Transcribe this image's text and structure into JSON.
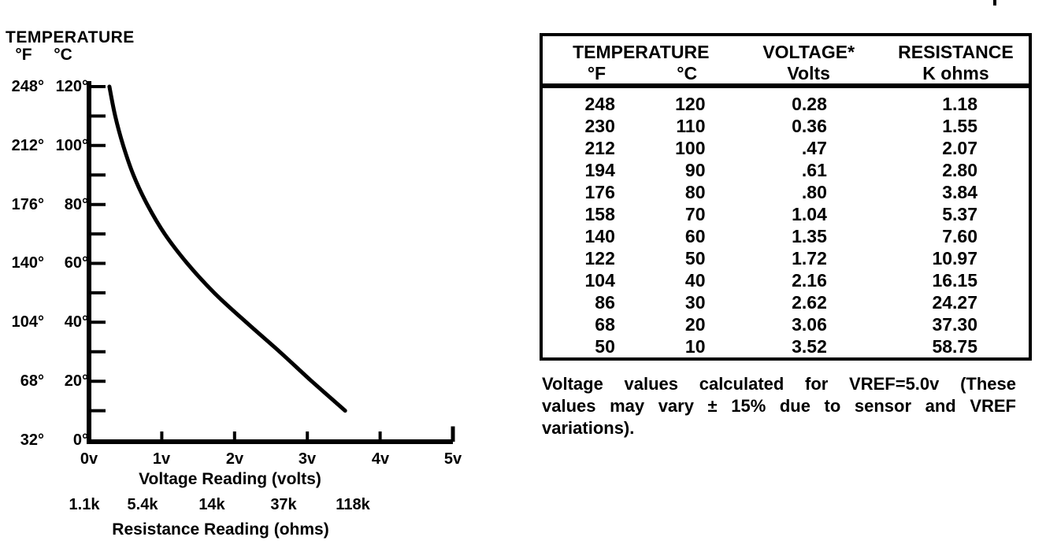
{
  "chart": {
    "title": "TEMPERATURE",
    "unit_f": "°F",
    "unit_c": "°C",
    "y_rows": [
      {
        "f": "248°",
        "c": "120°"
      },
      {
        "f": "212°",
        "c": "100°"
      },
      {
        "f": "176°",
        "c": "80°"
      },
      {
        "f": "140°",
        "c": "60°"
      },
      {
        "f": "104°",
        "c": "40°"
      },
      {
        "f": "68°",
        "c": "20°"
      },
      {
        "f": "32°",
        "c": "0°"
      }
    ],
    "x_ticks": [
      "0v",
      "1v",
      "2v",
      "3v",
      "4v",
      "5v"
    ],
    "x_axis_label": "Voltage Reading (volts)",
    "r_ticks": [
      "1.1k",
      "5.4k",
      "14k",
      "37k",
      "118k"
    ],
    "r_axis_label": "Resistance Reading (ohms)"
  },
  "chart_data": {
    "type": "line",
    "title": "TEMPERATURE",
    "x": [
      0.28,
      0.36,
      0.47,
      0.61,
      0.8,
      1.04,
      1.35,
      1.72,
      2.16,
      2.62,
      3.06,
      3.52
    ],
    "y": [
      120,
      110,
      100,
      90,
      80,
      70,
      60,
      50,
      40,
      30,
      20,
      10
    ],
    "xlabel": "Voltage Reading (volts)",
    "ylabel": "TEMPERATURE °F / °C",
    "xlim": [
      0,
      5
    ],
    "ylim_celsius": [
      0,
      120
    ],
    "y_tick_labels_f": [
      248,
      212,
      176,
      140,
      104,
      68,
      32
    ],
    "y_tick_labels_c": [
      120,
      100,
      80,
      60,
      40,
      20,
      0
    ],
    "y_minor_tick_step_c": 10,
    "x_tick_labels": [
      "0v",
      "1v",
      "2v",
      "3v",
      "4v",
      "5v"
    ],
    "secondary_x_axis": {
      "label": "Resistance Reading (ohms)",
      "tick_labels": [
        "1.1k",
        "5.4k",
        "14k",
        "37k",
        "118k"
      ],
      "at_volts": [
        0,
        1,
        2,
        3,
        4
      ]
    },
    "grid": false,
    "legend": "none"
  },
  "table": {
    "header": {
      "temperature": "TEMPERATURE",
      "f": "°F",
      "c": "°C",
      "voltage": "VOLTAGE*",
      "volts": "Volts",
      "resistance": "RESISTANCE",
      "kohms": "K ohms"
    },
    "rows": [
      {
        "f": "248",
        "c": "120",
        "v": "0.28",
        "r": "1.18"
      },
      {
        "f": "230",
        "c": "110",
        "v": "0.36",
        "r": "1.55"
      },
      {
        "f": "212",
        "c": "100",
        "v": ".47",
        "r": "2.07"
      },
      {
        "f": "194",
        "c": "90",
        "v": ".61",
        "r": "2.80"
      },
      {
        "f": "176",
        "c": "80",
        "v": ".80",
        "r": "3.84"
      },
      {
        "f": "158",
        "c": "70",
        "v": "1.04",
        "r": "5.37"
      },
      {
        "f": "140",
        "c": "60",
        "v": "1.35",
        "r": "7.60"
      },
      {
        "f": "122",
        "c": "50",
        "v": "1.72",
        "r": "10.97"
      },
      {
        "f": "104",
        "c": "40",
        "v": "2.16",
        "r": "16.15"
      },
      {
        "f": "86",
        "c": "30",
        "v": "2.62",
        "r": "24.27"
      },
      {
        "f": "68",
        "c": "20",
        "v": "3.06",
        "r": "37.30"
      },
      {
        "f": "50",
        "c": "10",
        "v": "3.52",
        "r": "58.75"
      }
    ]
  },
  "footnote": {
    "lines": [
      "Voltage values calculated for VREF=5.0v (These",
      "values may vary ± 15% due to sensor and VREF",
      "variations)."
    ]
  }
}
